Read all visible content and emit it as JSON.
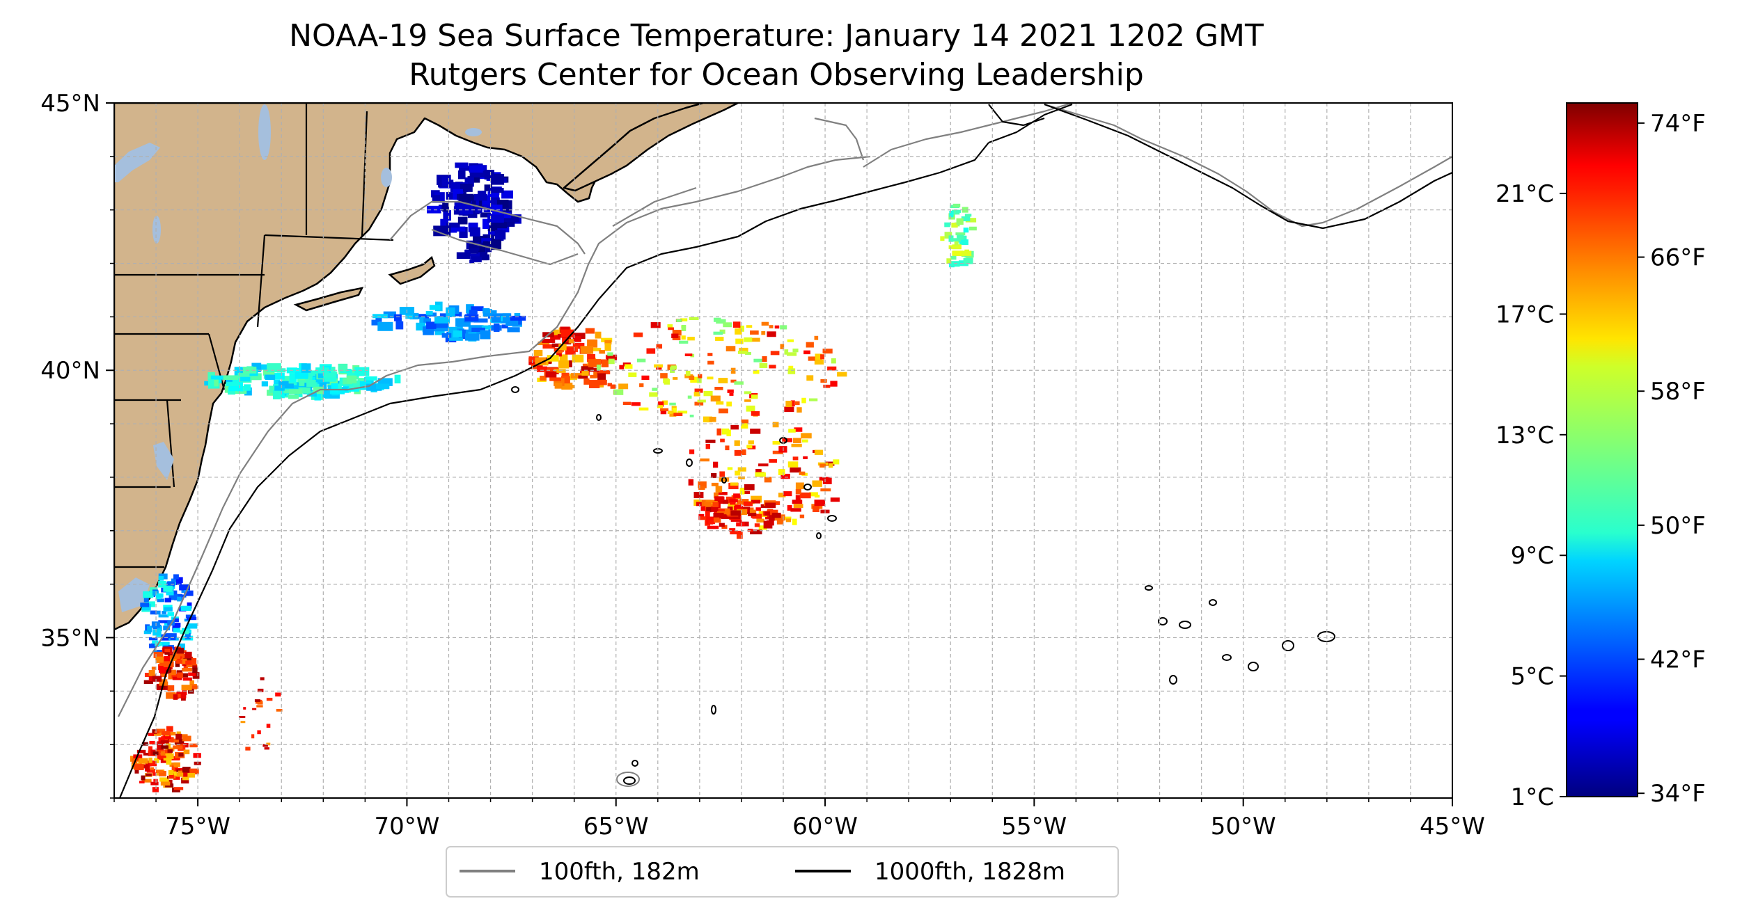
{
  "title": {
    "line1": "NOAA-19 Sea Surface Temperature: January 14 2021 1202 GMT",
    "line2": "Rutgers Center for Ocean Observing Leadership"
  },
  "map": {
    "lon_range": [
      -77,
      -45
    ],
    "lat_range": [
      32,
      45
    ],
    "x_ticks": [
      {
        "lon": -75,
        "label": "75°W"
      },
      {
        "lon": -70,
        "label": "70°W"
      },
      {
        "lon": -65,
        "label": "65°W"
      },
      {
        "lon": -60,
        "label": "60°W"
      },
      {
        "lon": -55,
        "label": "55°W"
      },
      {
        "lon": -50,
        "label": "50°W"
      },
      {
        "lon": -45,
        "label": "45°W"
      }
    ],
    "y_ticks": [
      {
        "lat": 45,
        "label": "45°N"
      },
      {
        "lat": 40,
        "label": "40°N"
      },
      {
        "lat": 35,
        "label": "35°N"
      }
    ],
    "gridlines": true,
    "land_color": "#d2b48c",
    "water_color": "#a5bfdd"
  },
  "legend": {
    "placement": "bottom-center",
    "items": [
      {
        "label": "100fth, 182m",
        "color": "#808080"
      },
      {
        "label": "1000fth, 1828m",
        "color": "#000000"
      }
    ]
  },
  "colorbar": {
    "colormap": "jet",
    "celsius_range": [
      1,
      24
    ],
    "celsius_ticks": [
      {
        "value": 1,
        "label": "1°C"
      },
      {
        "value": 5,
        "label": "5°C"
      },
      {
        "value": 9,
        "label": "9°C"
      },
      {
        "value": 13,
        "label": "13°C"
      },
      {
        "value": 17,
        "label": "17°C"
      },
      {
        "value": 21,
        "label": "21°C"
      }
    ],
    "fahrenheit_ticks": [
      {
        "value": 34,
        "label": "34°F"
      },
      {
        "value": 42,
        "label": "42°F"
      },
      {
        "value": 50,
        "label": "50°F"
      },
      {
        "value": 58,
        "label": "58°F"
      },
      {
        "value": 66,
        "label": "66°F"
      },
      {
        "value": 74,
        "label": "74°F"
      }
    ]
  }
}
